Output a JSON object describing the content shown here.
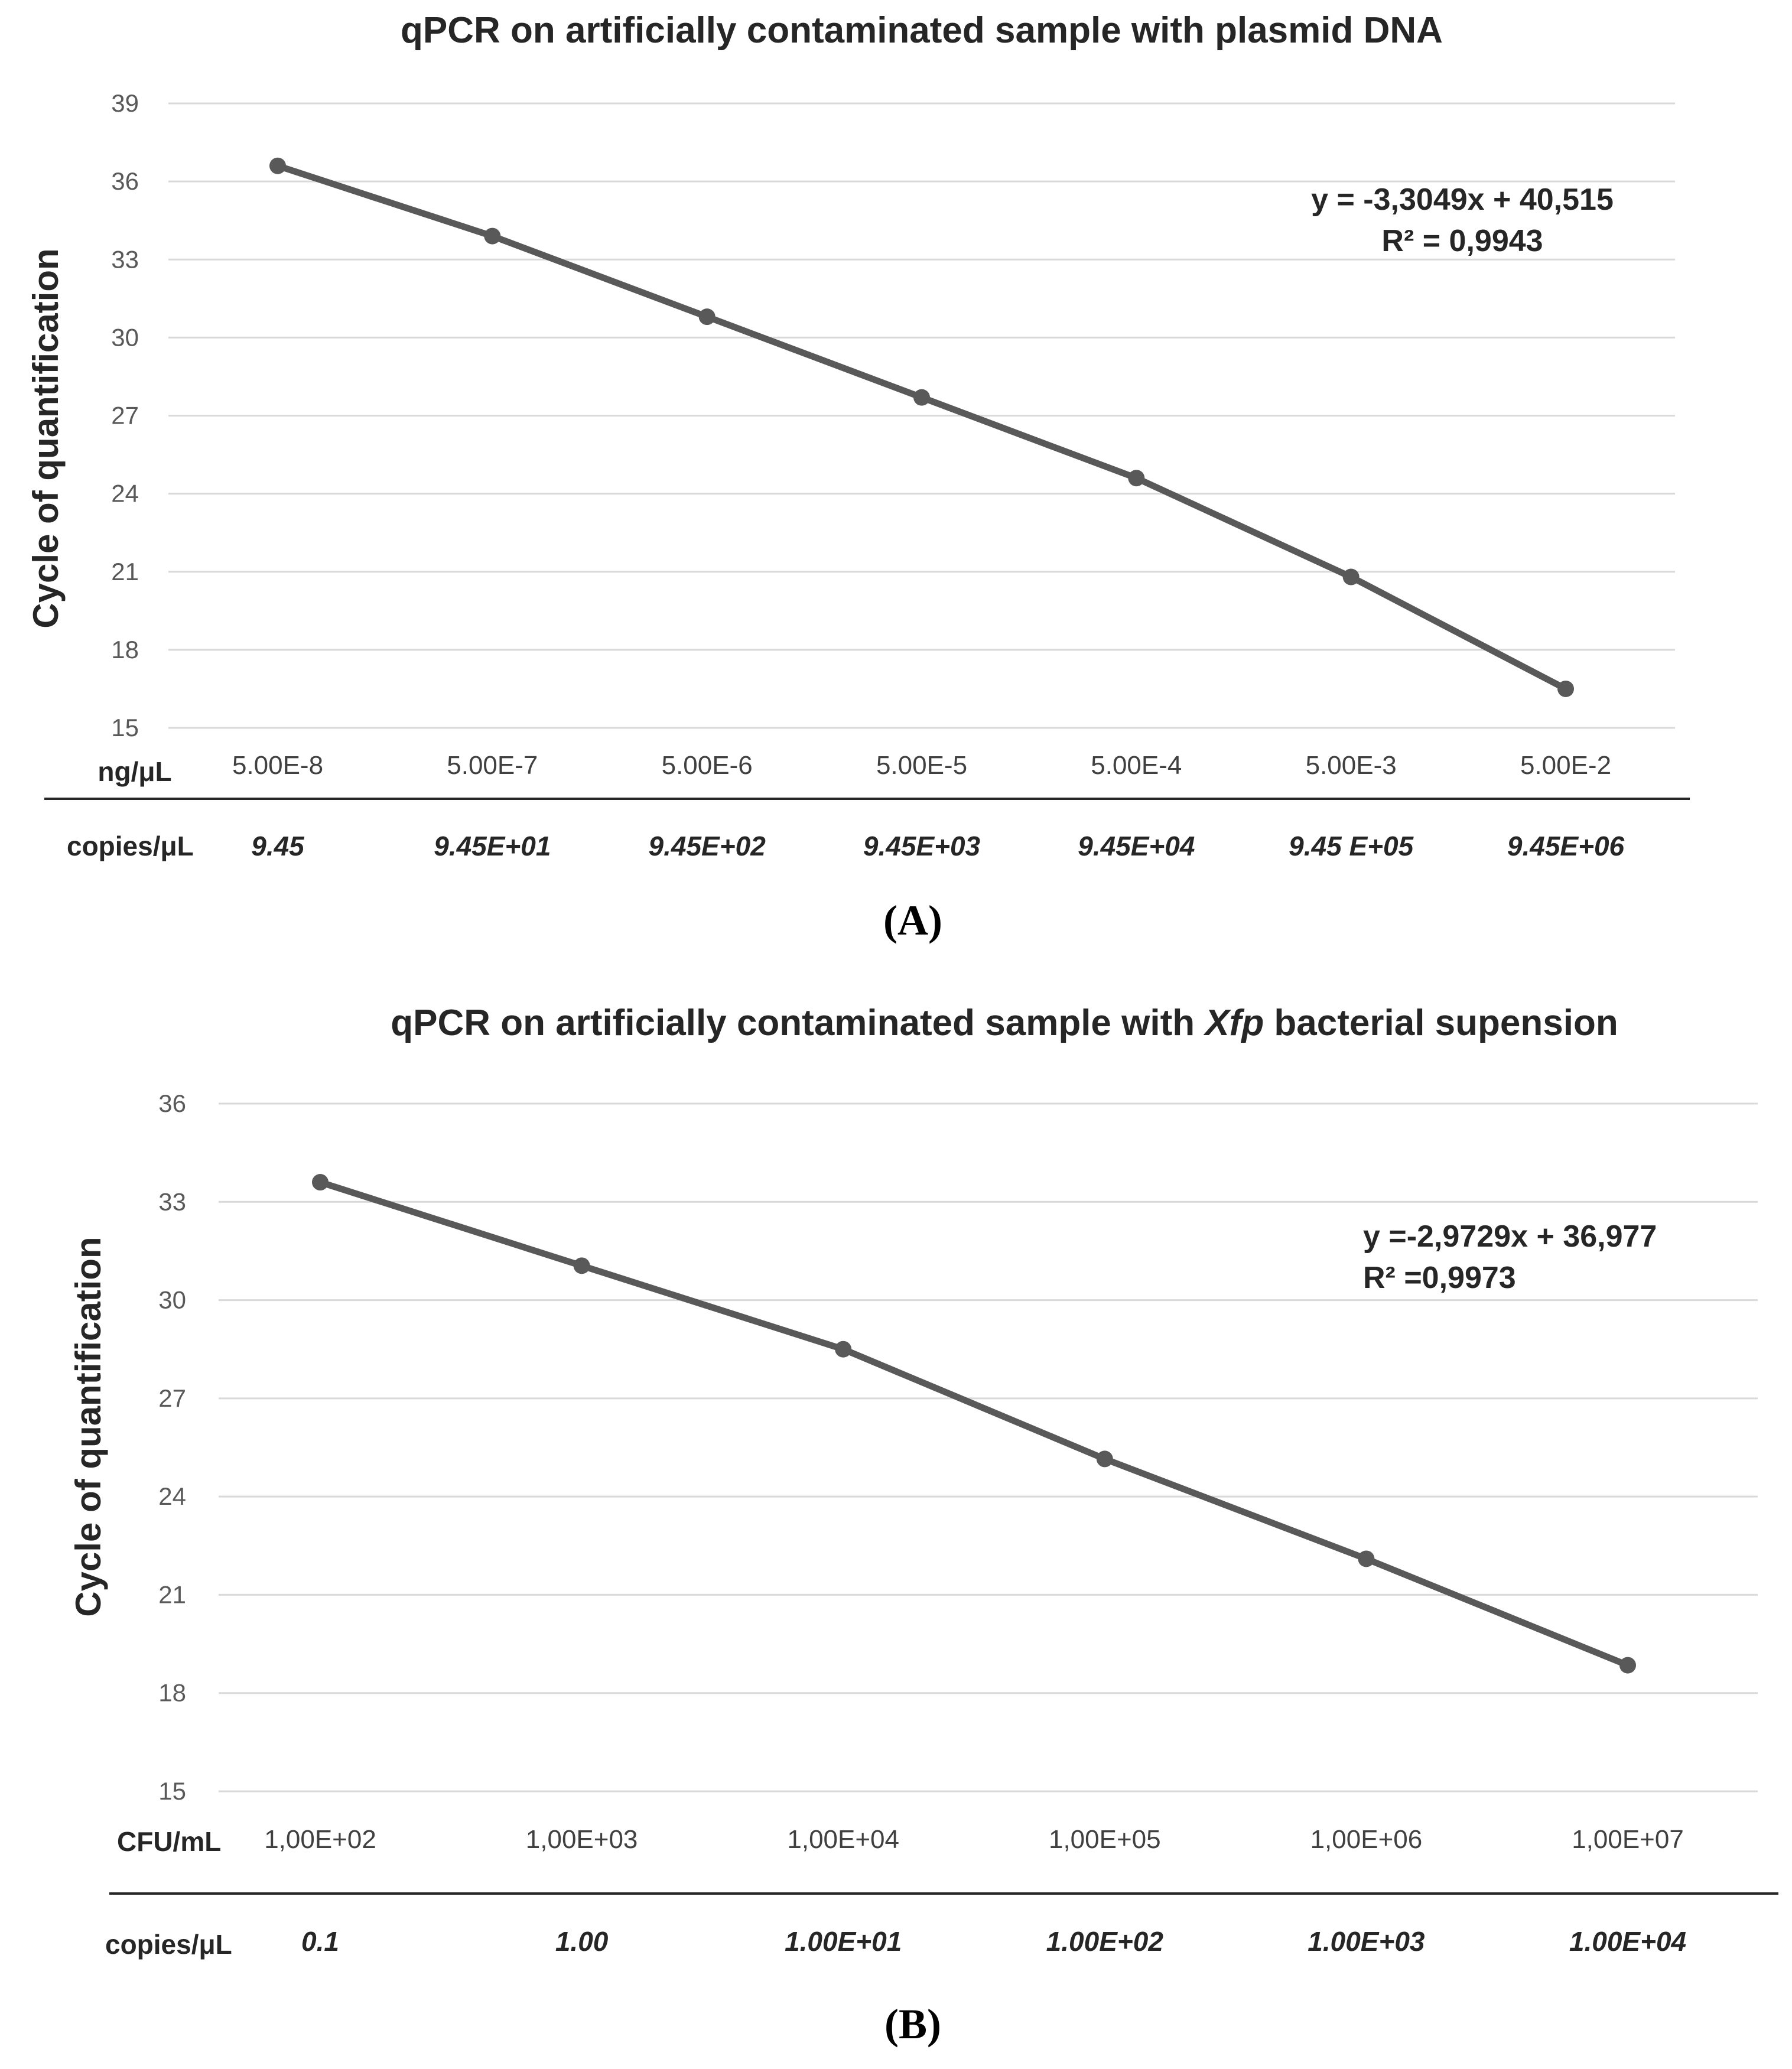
{
  "chart_data": [
    {
      "type": "line",
      "panel": "(A)",
      "title": "qPCR on artificially contaminated sample with plasmid DNA",
      "ylabel": "Cycle of quantification",
      "ylim": [
        15,
        39
      ],
      "yticks": [
        15,
        18,
        21,
        24,
        27,
        30,
        33,
        36,
        39
      ],
      "grid": true,
      "xaxis_label": "ng/μL",
      "categories": [
        "5.00E-8",
        "5.00E-7",
        "5.00E-6",
        "5.00E-5",
        "5.00E-4",
        "5.00E-3",
        "5.00E-2"
      ],
      "copies_label": "copies/μL",
      "copies": [
        "9.45",
        "9.45E+01",
        "9.45E+02",
        "9.45E+03",
        "9.45E+04",
        "9.45 E+05",
        "9.45E+06"
      ],
      "series": [
        {
          "name": "Cq",
          "values": [
            36.6,
            33.9,
            30.8,
            27.7,
            24.6,
            20.8,
            16.5
          ]
        }
      ],
      "equation": "y = -3,3049x + 40,515",
      "r2": "R² = 0,9943",
      "color": "#595959"
    },
    {
      "type": "line",
      "panel": "(B)",
      "title_parts": [
        "qPCR on artificially contaminated sample with ",
        "Xfp",
        " bacterial supension"
      ],
      "ylabel": "Cycle of quantification",
      "ylim": [
        15,
        36
      ],
      "yticks": [
        15,
        18,
        21,
        24,
        27,
        30,
        33,
        36
      ],
      "grid": true,
      "xaxis_label": "CFU/mL",
      "categories": [
        "1,00E+02",
        "1,00E+03",
        "1,00E+04",
        "1,00E+05",
        "1,00E+06",
        "1,00E+07"
      ],
      "copies_label": "copies/μL",
      "copies": [
        "0.1",
        "1.00",
        "1.00E+01",
        "1.00E+02",
        "1.00E+03",
        "1.00E+04"
      ],
      "series": [
        {
          "name": "Cq",
          "values": [
            33.6,
            31.05,
            28.5,
            25.15,
            22.1,
            18.85
          ]
        }
      ],
      "equation": "y =-2,9729x + 36,977",
      "r2": "R² =0,9973",
      "color": "#595959"
    }
  ]
}
